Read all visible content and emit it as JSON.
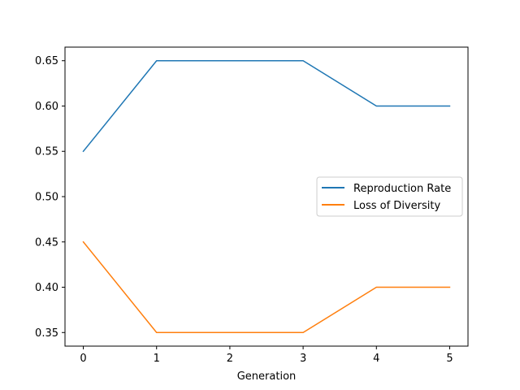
{
  "chart_data": {
    "type": "line",
    "title": "",
    "xlabel": "Generation",
    "ylabel": "",
    "x": [
      0,
      1,
      2,
      3,
      4,
      5
    ],
    "xticks": [
      "0",
      "1",
      "2",
      "3",
      "4",
      "5"
    ],
    "yticks": [
      "0.35",
      "0.40",
      "0.45",
      "0.50",
      "0.55",
      "0.60",
      "0.65"
    ],
    "xlim": [
      -0.25,
      5.25
    ],
    "ylim": [
      0.335,
      0.665
    ],
    "grid": false,
    "legend_position": "center-right",
    "series": [
      {
        "name": "Reproduction Rate",
        "color": "#1f77b4",
        "values": [
          0.55,
          0.65,
          0.65,
          0.65,
          0.6,
          0.6
        ]
      },
      {
        "name": "Loss of Diversity",
        "color": "#ff7f0e",
        "values": [
          0.45,
          0.35,
          0.35,
          0.35,
          0.4,
          0.4
        ]
      }
    ]
  }
}
